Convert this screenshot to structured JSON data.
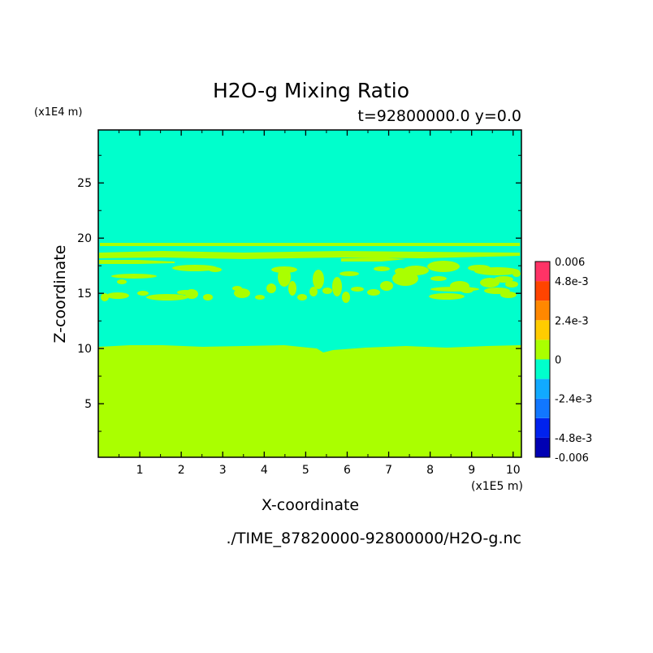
{
  "chart_data": {
    "type": "heatmap",
    "title": "H2O-g Mixing Ratio",
    "subtitle": "t=92800000.0 y=0.0",
    "xlabel": "X-coordinate",
    "ylabel": "Z-coordinate",
    "x_scale_label": "(x1E5 m)",
    "y_scale_label": "(x1E4 m)",
    "footer": "./TIME_87820000-92800000/H2O-g.nc",
    "xlim": [
      0,
      10.2
    ],
    "ylim": [
      0.15,
      29.8
    ],
    "x_ticks": [
      "1",
      "2",
      "3",
      "4",
      "5",
      "6",
      "7",
      "8",
      "9",
      "10"
    ],
    "y_ticks": [
      "5",
      "10",
      "15",
      "20",
      "25"
    ],
    "grid": false,
    "colorbar": {
      "placement": "right",
      "levels": [
        -0.006,
        -0.0048,
        -0.0036,
        -0.0024,
        -0.0012,
        0,
        0.0012,
        0.0024,
        0.0036,
        0.0048,
        0.006
      ],
      "colors": [
        "#0000b3",
        "#0022ee",
        "#1177ff",
        "#11aaff",
        "#00ffcc",
        "#aaff00",
        "#ffcc00",
        "#ff8800",
        "#ff4400",
        "#ff3366"
      ],
      "labels": [
        "0.006",
        "4.8e-3",
        "2.4e-3",
        "0",
        "-2.4e-3",
        "-4.8e-3",
        "-0.006"
      ]
    },
    "fields": {
      "background_level": "0 to -1.2e-3",
      "lower_layer_level": "0 to 1.2e-3",
      "lower_layer_top_z": 10.1,
      "upper_band_z": [
        14.3,
        19.5
      ]
    }
  },
  "colors": {
    "cyan": "#00ffcc",
    "green": "#aaff00"
  }
}
